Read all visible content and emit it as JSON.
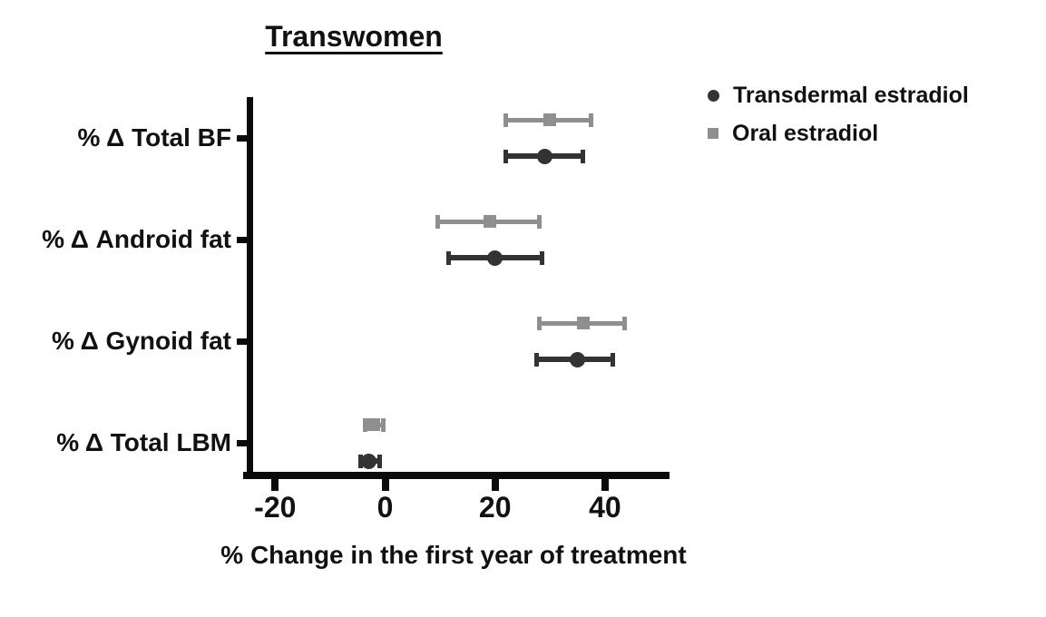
{
  "title": "Transwomen",
  "xlabel": "% Change in the first year of treatment",
  "chart_data": {
    "type": "scatter",
    "subtype": "horizontal dot plot with error bars (forest plot)",
    "title": "Transwomen",
    "xlabel": "% Change in the first year of treatment",
    "categories": [
      "% Δ Total BF",
      "% Δ Android fat",
      "% Δ Gynoid fat",
      "% Δ Total LBM"
    ],
    "xticks": [
      -20,
      0,
      20,
      40
    ],
    "xlim": [
      -25,
      51
    ],
    "grid": false,
    "legend_position": "top-right",
    "series": [
      {
        "name": "Transdermal estradiol",
        "marker": "circle",
        "color": "#333333",
        "row": "bottom",
        "values": [
          29,
          20,
          35,
          -3
        ],
        "ci_low": [
          22,
          11.5,
          27.5,
          -4.5
        ],
        "ci_high": [
          36,
          28.5,
          41.5,
          -1
        ]
      },
      {
        "name": "Oral estradiol",
        "marker": "square",
        "color": "#8f8f8f",
        "row": "top",
        "values": [
          30,
          19,
          36,
          -2
        ],
        "ci_low": [
          22,
          9.5,
          28,
          -3.7
        ],
        "ci_high": [
          37.5,
          28,
          43.5,
          -0.3
        ]
      }
    ]
  }
}
